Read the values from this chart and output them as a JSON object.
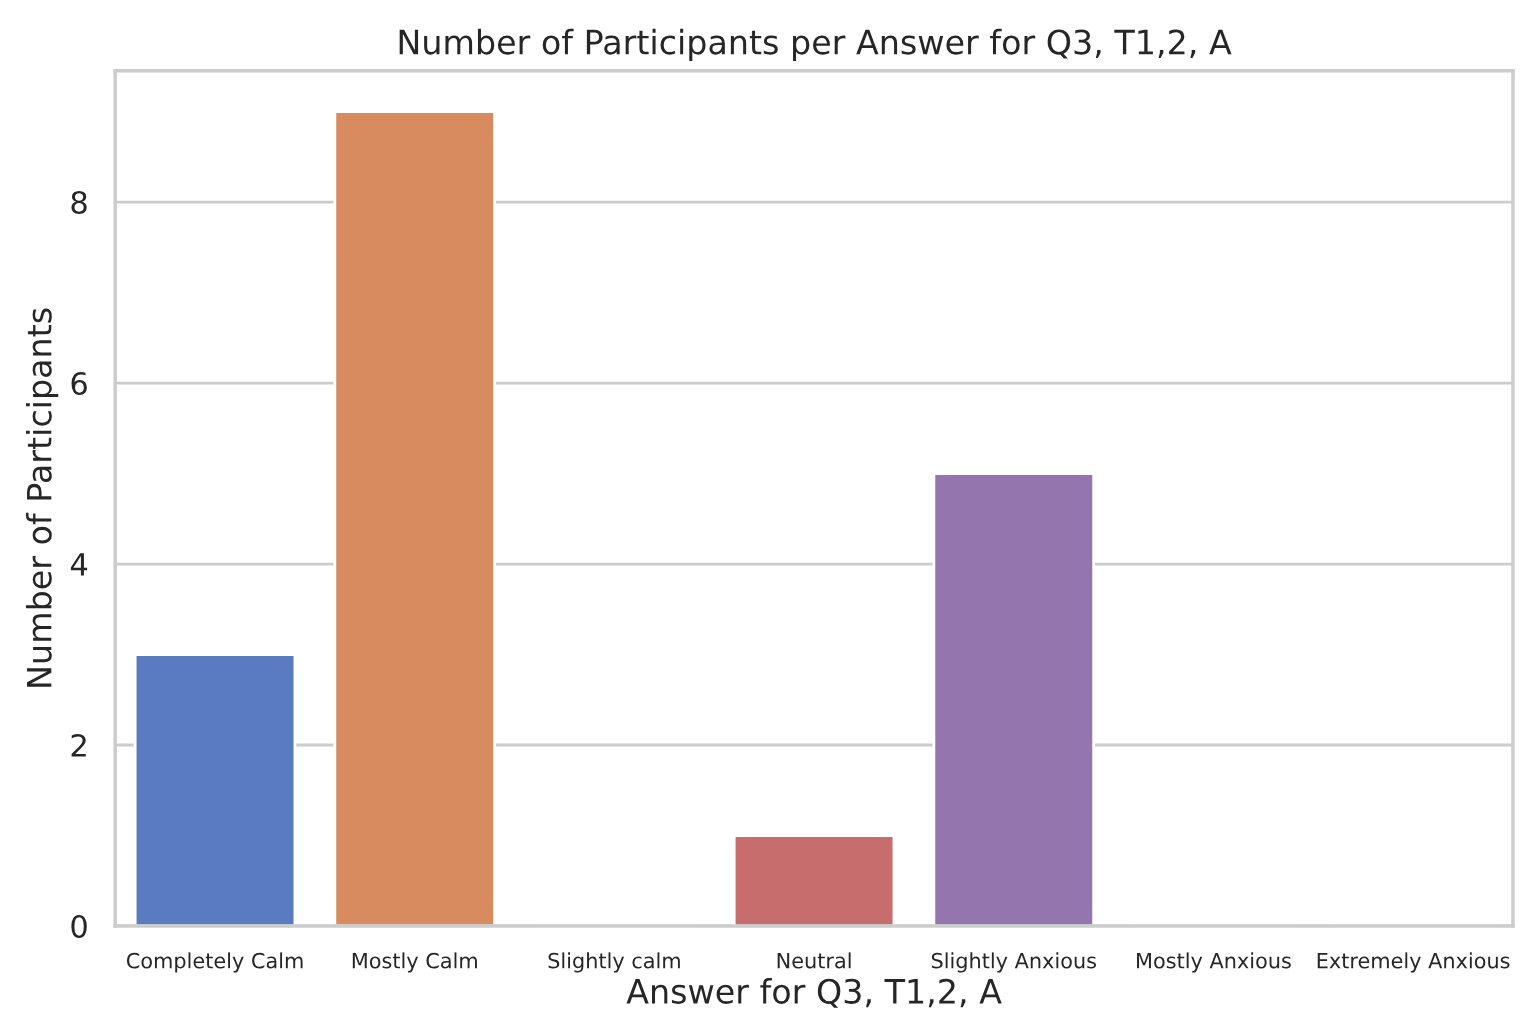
{
  "chart_data": {
    "type": "bar",
    "title": "Number of Participants per Answer for Q3, T1,2, A",
    "xlabel": "Answer for Q3, T1,2, A",
    "ylabel": "Number of Participants",
    "categories": [
      "Completely Calm",
      "Mostly Calm",
      "Slightly calm",
      "Neutral",
      "Slightly Anxious",
      "Mostly Anxious",
      "Extremely Anxious"
    ],
    "values": [
      3,
      9,
      0,
      1,
      5,
      0,
      0
    ],
    "colors": [
      "#5a7bc0",
      "#d88b5e",
      null,
      "#c76d6d",
      "#9475ad",
      null,
      null
    ],
    "ylim": [
      0,
      9.45
    ],
    "yticks": [
      0,
      2,
      4,
      6,
      8
    ],
    "grid": "y"
  }
}
